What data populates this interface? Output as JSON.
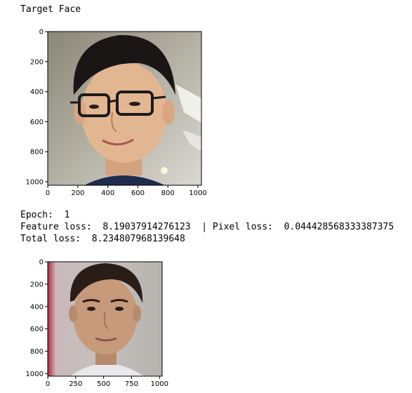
{
  "output": {
    "title": "Target Face",
    "epoch_line": "Epoch:  1",
    "loss_line": "Feature loss:  8.19037914276123  | Pixel loss:  0.044428568333387375",
    "total_line": "Total loss:  8.234807968139648"
  },
  "plots": [
    {
      "image": "target-face-photo",
      "x_ticks": [
        "0",
        "200",
        "400",
        "600",
        "800",
        "1000"
      ],
      "y_ticks": [
        "0",
        "200",
        "400",
        "600",
        "800",
        "1000"
      ]
    },
    {
      "image": "generated-face-photo",
      "x_ticks": [
        "0",
        "250",
        "500",
        "750",
        "1000"
      ],
      "y_ticks": [
        "0",
        "200",
        "400",
        "600",
        "800",
        "1000"
      ]
    }
  ]
}
